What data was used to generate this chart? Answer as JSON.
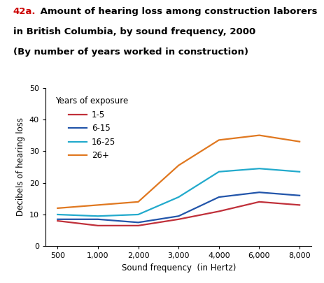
{
  "title_number": "42a.",
  "title_number_color": "#cc0000",
  "title_line1": " Amount of hearing loss among construction laborers",
  "title_line2": "in British Columbia, by sound frequency, 2000",
  "title_line3": "(By number of years worked in construction)",
  "title_fontsize": 9.5,
  "xlabel": "Sound frequency  (in Hertz)",
  "ylabel": "Decibels of hearing loss",
  "x_values": [
    0,
    1,
    2,
    3,
    4,
    5,
    6
  ],
  "x_tick_positions": [
    0,
    1,
    2,
    3,
    4,
    5,
    6
  ],
  "xtick_labels": [
    "500",
    "1,000",
    "2,000",
    "3,000",
    "4,000",
    "6,000",
    "8,000"
  ],
  "series": [
    {
      "label": "1-5",
      "color": "#c0303a",
      "values": [
        8.0,
        6.5,
        6.5,
        8.5,
        11.0,
        14.0,
        13.0
      ]
    },
    {
      "label": "6-15",
      "color": "#2255aa",
      "values": [
        8.5,
        8.5,
        7.5,
        9.5,
        15.5,
        17.0,
        16.0
      ]
    },
    {
      "label": "16-25",
      "color": "#22aacc",
      "values": [
        10.0,
        9.5,
        10.0,
        15.5,
        23.5,
        24.5,
        23.5
      ]
    },
    {
      "label": "26+",
      "color": "#e07820",
      "values": [
        12.0,
        13.0,
        14.0,
        25.5,
        33.5,
        35.0,
        33.0
      ]
    }
  ],
  "ylim": [
    0,
    50
  ],
  "yticks": [
    0,
    10,
    20,
    30,
    40,
    50
  ],
  "legend_title": "Years of exposure",
  "background_color": "#ffffff",
  "linewidth": 1.6
}
